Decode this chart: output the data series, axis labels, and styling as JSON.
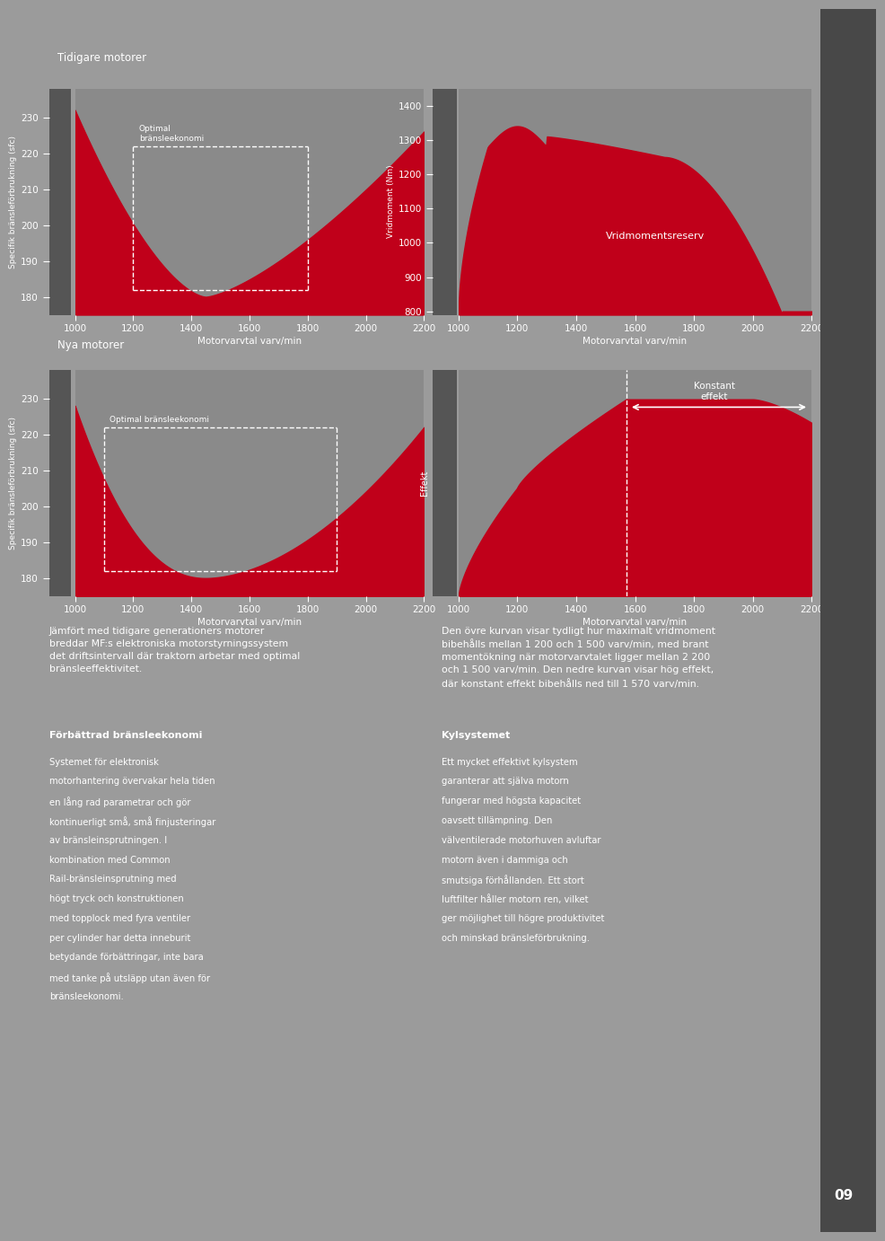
{
  "bg_color": "#9b9b9b",
  "dark_panel_color": "#555555",
  "chart_bg_color": "#8a8a8a",
  "red_color": "#c0001a",
  "white": "#ffffff",
  "sidebar_color": "#484848",
  "top_left_title": "Tidigare motorer",
  "bottom_left_title": "Nya motorer",
  "sfc_ylabel": "Specifik bränsleförbrukning (sfc)",
  "vrid_ylabel": "Vridmoment (Nm)",
  "effekt_ylabel": "Effekt",
  "xlabel": "Motorvarvtal varv/min",
  "x_ticks": [
    1000,
    1200,
    1400,
    1600,
    1800,
    2000,
    2200
  ],
  "sfc_yticks": [
    180,
    190,
    200,
    210,
    220,
    230
  ],
  "vrid_yticks": [
    800,
    900,
    1000,
    1100,
    1200,
    1300,
    1400
  ],
  "optimal_label_top": "Optimal\nbränsleekonomi",
  "optimal_label_bot": "Optimal bränsleekonomi",
  "vridmomentsreserv_label": "Vridmomentsreserv",
  "konstant_effekt_label": "Konstant\neffekt",
  "text_block1_title": "Förbättrad bränsleekonomi",
  "text_block1_lines": [
    "Systemet för elektronisk",
    "motorhantering övervakar hela tiden",
    "en lång rad parametrar och gör",
    "kontinuerligt små, små finjusteringar",
    "av bränsleinsprutningen. I",
    "kombination med Common",
    "Rail-bränsleinsprutning med",
    "högt tryck och konstruktionen",
    "med topplock med fyra ventiler",
    "per cylinder har detta inneburit",
    "betydande förbättringar, inte bara",
    "med tanke på utsläpp utan även för",
    "bränsleekonomi."
  ],
  "text_block2_title": "Kylsystemet",
  "text_block2_lines": [
    "Ett mycket effektivt kylsystem",
    "garanterar att själva motorn",
    "fungerar med högsta kapacitet",
    "oavsett tillämpning. Den",
    "välventilerade motorhuven avluftar",
    "motorn även i dammiga och",
    "smutsiga förhållanden. Ett stort",
    "luftfilter håller motorn ren, vilket",
    "ger möjlighet till högre produktivitet",
    "och minskad bränsleförbrukning."
  ],
  "caption_left_lines": [
    "Jämfört med tidigare generationers motorer",
    "breddar MF:s elektroniska motorstyrningssystem",
    "det driftsintervall där traktorn arbetar med optimal",
    "bränsleeffektivitet."
  ],
  "caption_right_lines": [
    "Den övre kurvan visar tydligt hur maximalt vridmoment",
    "bibehålls mellan 1 200 och 1 500 varv/min, med brant",
    "momentökning när motorvarvtalet ligger mellan 2 200",
    "och 1 500 varv/min. Den nedre kurvan visar hög effekt,",
    "där konstant effekt bibehålls ned till 1 570 varv/min."
  ],
  "page_num": "09"
}
